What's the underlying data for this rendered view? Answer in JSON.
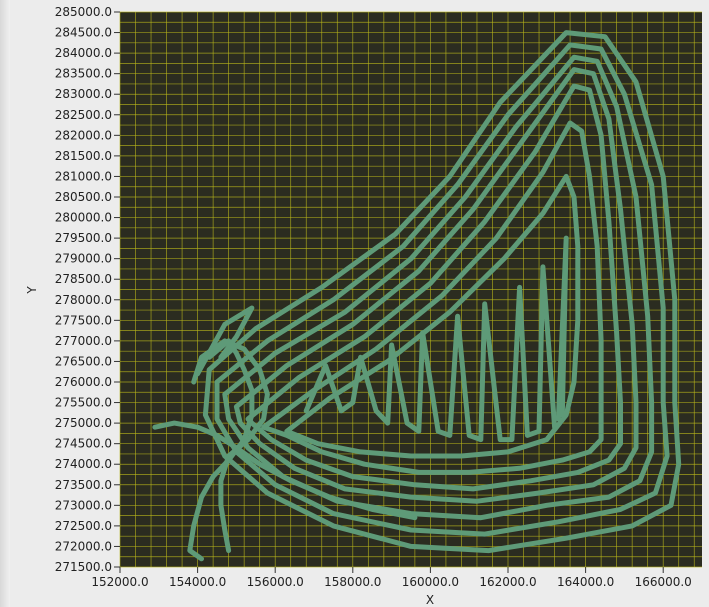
{
  "chart_data": {
    "type": "line",
    "title": "",
    "xlabel": "X",
    "ylabel": "Y",
    "xlim": [
      152000,
      167000
    ],
    "ylim": [
      271500,
      285000
    ],
    "x_ticks": [
      152000,
      154000,
      156000,
      158000,
      160000,
      162000,
      164000,
      166000
    ],
    "x_tick_labels": [
      "152000.0",
      "154000.0",
      "156000.0",
      "158000.0",
      "160000.0",
      "162000.0",
      "164000.0",
      "166000.0"
    ],
    "y_ticks": [
      271500,
      272000,
      272500,
      273000,
      273500,
      274000,
      274500,
      275000,
      275500,
      276000,
      276500,
      277000,
      277500,
      278000,
      278500,
      279000,
      279500,
      280000,
      280500,
      281000,
      281500,
      282000,
      282500,
      283000,
      283500,
      284000,
      284500,
      285000
    ],
    "y_tick_labels": [
      "271500.0",
      "272000.0",
      "272500.0",
      "273000.0",
      "273500.0",
      "274000.0",
      "274500.0",
      "275000.0",
      "275500.0",
      "276000.0",
      "276500.0",
      "277000.0",
      "277500.0",
      "278000.0",
      "278500.0",
      "279000.0",
      "279500.0",
      "280000.0",
      "280500.0",
      "281000.0",
      "281500.0",
      "282000.0",
      "282500.0",
      "283000.0",
      "283500.0",
      "284000.0",
      "284500.0",
      "285000.0"
    ],
    "grid": true,
    "colors": {
      "background": "#2b2c20",
      "grid": "#b7b51b",
      "line": "#5e9a78"
    },
    "series": [
      {
        "closed": true,
        "points": [
          [
            154300,
            276300
          ],
          [
            155500,
            277300
          ],
          [
            157200,
            278300
          ],
          [
            159100,
            279600
          ],
          [
            160500,
            281000
          ],
          [
            161800,
            282800
          ],
          [
            163500,
            284500
          ],
          [
            164500,
            284400
          ],
          [
            165300,
            283300
          ],
          [
            166000,
            281000
          ],
          [
            166300,
            278000
          ],
          [
            166300,
            275500
          ],
          [
            166400,
            274000
          ],
          [
            166200,
            273000
          ],
          [
            165200,
            272500
          ],
          [
            163500,
            272200
          ],
          [
            161500,
            271900
          ],
          [
            159500,
            272000
          ],
          [
            157500,
            272500
          ],
          [
            155800,
            273300
          ],
          [
            154700,
            274200
          ],
          [
            154200,
            275200
          ]
        ]
      },
      {
        "closed": true,
        "points": [
          [
            154500,
            276000
          ],
          [
            155800,
            277000
          ],
          [
            157500,
            278000
          ],
          [
            159300,
            279300
          ],
          [
            160700,
            280800
          ],
          [
            162000,
            282500
          ],
          [
            163600,
            284200
          ],
          [
            164400,
            284100
          ],
          [
            165000,
            283000
          ],
          [
            165700,
            280800
          ],
          [
            166000,
            277800
          ],
          [
            166000,
            275500
          ],
          [
            166100,
            274200
          ],
          [
            165800,
            273300
          ],
          [
            164900,
            272900
          ],
          [
            163300,
            272600
          ],
          [
            161400,
            272300
          ],
          [
            159500,
            272400
          ],
          [
            157500,
            272800
          ],
          [
            156000,
            273500
          ],
          [
            155000,
            274300
          ],
          [
            154500,
            275100
          ]
        ]
      },
      {
        "closed": true,
        "points": [
          [
            154700,
            275700
          ],
          [
            156000,
            276700
          ],
          [
            157800,
            277700
          ],
          [
            159500,
            279000
          ],
          [
            160900,
            280500
          ],
          [
            162200,
            282200
          ],
          [
            163700,
            283900
          ],
          [
            164300,
            283800
          ],
          [
            164800,
            282700
          ],
          [
            165300,
            280500
          ],
          [
            165600,
            277600
          ],
          [
            165700,
            275500
          ],
          [
            165700,
            274300
          ],
          [
            165400,
            273600
          ],
          [
            164600,
            273200
          ],
          [
            163000,
            273000
          ],
          [
            161300,
            272700
          ],
          [
            159500,
            272800
          ],
          [
            157600,
            273100
          ],
          [
            156200,
            273700
          ],
          [
            155300,
            274400
          ],
          [
            154800,
            275100
          ]
        ]
      },
      {
        "closed": true,
        "points": [
          [
            155000,
            275400
          ],
          [
            156300,
            276400
          ],
          [
            158000,
            277400
          ],
          [
            159700,
            278700
          ],
          [
            161100,
            280200
          ],
          [
            162400,
            281900
          ],
          [
            163700,
            283600
          ],
          [
            164200,
            283500
          ],
          [
            164600,
            282400
          ],
          [
            164900,
            280200
          ],
          [
            165200,
            277400
          ],
          [
            165300,
            275500
          ],
          [
            165300,
            274400
          ],
          [
            165000,
            273900
          ],
          [
            164200,
            273500
          ],
          [
            162800,
            273300
          ],
          [
            161200,
            273100
          ],
          [
            159500,
            273200
          ],
          [
            157800,
            273400
          ],
          [
            156500,
            273900
          ],
          [
            155600,
            274500
          ],
          [
            155100,
            275000
          ]
        ]
      },
      {
        "closed": true,
        "points": [
          [
            155300,
            275100
          ],
          [
            156600,
            276100
          ],
          [
            158300,
            277100
          ],
          [
            160000,
            278400
          ],
          [
            161400,
            279900
          ],
          [
            162700,
            281600
          ],
          [
            163700,
            283200
          ],
          [
            164100,
            283100
          ],
          [
            164400,
            282000
          ],
          [
            164600,
            279900
          ],
          [
            164800,
            277200
          ],
          [
            164900,
            275500
          ],
          [
            164900,
            274500
          ],
          [
            164600,
            274100
          ],
          [
            163800,
            273800
          ],
          [
            162600,
            273600
          ],
          [
            161100,
            273400
          ],
          [
            159600,
            273500
          ],
          [
            158000,
            273700
          ],
          [
            156800,
            274100
          ],
          [
            155900,
            274600
          ],
          [
            155400,
            275000
          ]
        ]
      },
      {
        "closed": true,
        "points": [
          [
            155700,
            274900
          ],
          [
            157000,
            275800
          ],
          [
            158600,
            276800
          ],
          [
            160300,
            278100
          ],
          [
            161700,
            279500
          ],
          [
            162900,
            281100
          ],
          [
            163600,
            282300
          ],
          [
            163900,
            282100
          ],
          [
            164100,
            281000
          ],
          [
            164300,
            279300
          ],
          [
            164400,
            277000
          ],
          [
            164400,
            275500
          ],
          [
            164400,
            274600
          ],
          [
            164100,
            274300
          ],
          [
            163400,
            274100
          ],
          [
            162300,
            273900
          ],
          [
            161000,
            273800
          ],
          [
            159700,
            273800
          ],
          [
            158300,
            274000
          ],
          [
            157200,
            274300
          ],
          [
            156300,
            274700
          ]
        ]
      },
      {
        "closed": true,
        "points": [
          [
            156300,
            274800
          ],
          [
            157400,
            275600
          ],
          [
            158900,
            276500
          ],
          [
            160500,
            277700
          ],
          [
            161900,
            279000
          ],
          [
            162900,
            280100
          ],
          [
            163500,
            281000
          ],
          [
            163700,
            280500
          ],
          [
            163800,
            279300
          ],
          [
            163800,
            277500
          ],
          [
            163700,
            276000
          ],
          [
            163500,
            275200
          ],
          [
            163000,
            274600
          ],
          [
            162000,
            274300
          ],
          [
            160800,
            274200
          ],
          [
            159500,
            274200
          ],
          [
            158200,
            274300
          ],
          [
            157100,
            274500
          ]
        ]
      },
      {
        "closed": false,
        "points": [
          [
            154300,
            276600
          ],
          [
            154800,
            277000
          ],
          [
            155000,
            276700
          ],
          [
            155200,
            276300
          ],
          [
            155400,
            275800
          ],
          [
            155400,
            275200
          ],
          [
            155200,
            274600
          ],
          [
            154800,
            274100
          ],
          [
            154400,
            273700
          ],
          [
            154100,
            273200
          ],
          [
            153900,
            272500
          ],
          [
            153800,
            271900
          ],
          [
            154100,
            271700
          ]
        ]
      },
      {
        "closed": false,
        "points": [
          [
            153900,
            276000
          ],
          [
            154100,
            276600
          ],
          [
            154700,
            277000
          ],
          [
            155200,
            276800
          ],
          [
            155600,
            276300
          ],
          [
            155800,
            275700
          ],
          [
            155700,
            275100
          ],
          [
            155300,
            274600
          ],
          [
            154800,
            274200
          ],
          [
            154600,
            273600
          ],
          [
            154600,
            273000
          ],
          [
            154700,
            272400
          ],
          [
            154800,
            271900
          ]
        ]
      },
      {
        "closed": false,
        "points": [
          [
            152900,
            274900
          ],
          [
            153400,
            275000
          ],
          [
            154000,
            274900
          ],
          [
            154500,
            274700
          ],
          [
            155000,
            274400
          ],
          [
            155600,
            274000
          ],
          [
            156400,
            273600
          ],
          [
            157400,
            273200
          ],
          [
            158500,
            272900
          ],
          [
            159600,
            272700
          ]
        ]
      },
      {
        "closed": false,
        "points": [
          [
            156800,
            275300
          ],
          [
            157300,
            276400
          ],
          [
            157700,
            275300
          ],
          [
            158000,
            275500
          ],
          [
            158200,
            276600
          ],
          [
            158600,
            275300
          ],
          [
            158900,
            275000
          ],
          [
            159000,
            276900
          ],
          [
            159400,
            275000
          ],
          [
            159700,
            274800
          ],
          [
            159800,
            277200
          ],
          [
            160200,
            274800
          ],
          [
            160500,
            274700
          ],
          [
            160700,
            277600
          ],
          [
            161000,
            274700
          ],
          [
            161300,
            274600
          ],
          [
            161400,
            277900
          ],
          [
            161800,
            274600
          ],
          [
            162100,
            274600
          ],
          [
            162300,
            278300
          ],
          [
            162500,
            274700
          ],
          [
            162800,
            274800
          ],
          [
            162900,
            278800
          ],
          [
            163200,
            274900
          ]
        ]
      },
      {
        "closed": false,
        "points": [
          [
            154000,
            276200
          ],
          [
            154700,
            277400
          ],
          [
            155400,
            277800
          ],
          [
            155000,
            277100
          ],
          [
            154600,
            276600
          ]
        ]
      },
      {
        "closed": false,
        "points": [
          [
            163300,
            275100
          ],
          [
            163500,
            279500
          ],
          [
            163400,
            275200
          ]
        ]
      }
    ]
  }
}
